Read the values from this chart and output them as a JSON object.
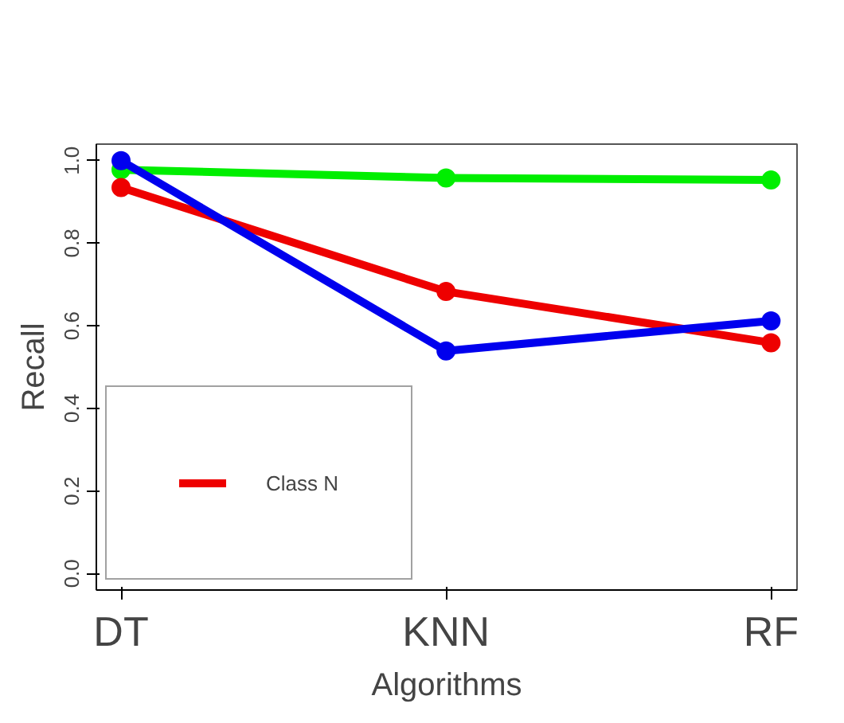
{
  "chart_data": {
    "type": "line",
    "xlabel": "Algorithms",
    "ylabel": "Recall",
    "categories": [
      "DT",
      "KNN",
      "RF"
    ],
    "series": [
      {
        "color": "#00ee00",
        "values": [
          0.978,
          0.958,
          0.953
        ]
      },
      {
        "name": "Class N",
        "color": "#ee0000",
        "values": [
          0.935,
          0.683,
          0.559
        ]
      },
      {
        "color": "#0000ee",
        "values": [
          1.0,
          0.539,
          0.612
        ]
      }
    ],
    "ylim": [
      -0.04,
      1.04
    ],
    "yticks": [
      {
        "value": 0,
        "label": "0.0"
      },
      0.2,
      0.4,
      0.6,
      0.8,
      {
        "value": 1,
        "label": "1.0"
      }
    ],
    "grid": false,
    "legend": "bottom left",
    "marker": "circle",
    "line_style": "solid"
  }
}
